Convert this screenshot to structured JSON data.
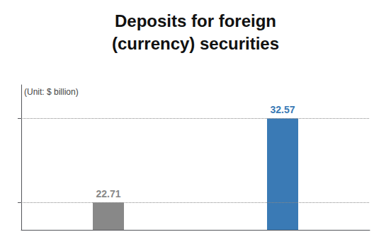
{
  "chart_data": {
    "type": "bar",
    "title": "Deposits for foreign\n(currency) securities",
    "annotations": [
      "(Unit: $ billion)"
    ],
    "categories": [
      null,
      null
    ],
    "values": [
      22.71,
      32.57
    ],
    "colors": [
      "#888888",
      "#3a7ab5"
    ],
    "ylim": [
      19.5,
      36.5
    ],
    "yticks": [
      22.71,
      32.57
    ],
    "grid": true,
    "data_labels": true,
    "tick_labels": false
  }
}
